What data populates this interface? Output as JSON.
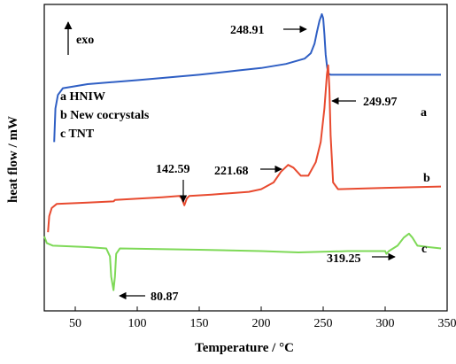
{
  "chart_data": {
    "type": "line",
    "xlabel": "Temperature / °C",
    "ylabel": "heat flow / mW",
    "xlim": [
      25,
      350
    ],
    "xticks": [
      50,
      100,
      150,
      200,
      250,
      300,
      350
    ],
    "grid": false,
    "legend_position": "left",
    "exo_label": "exo",
    "legend": [
      "a HNIW",
      "b New cocrystals",
      "c TNT"
    ],
    "series": [
      {
        "name": "a",
        "color": "#2f5fc4",
        "points": [
          [
            33,
            0.05
          ],
          [
            34,
            0.3
          ],
          [
            36,
            0.4
          ],
          [
            40,
            0.45
          ],
          [
            60,
            0.48
          ],
          [
            100,
            0.51
          ],
          [
            150,
            0.55
          ],
          [
            160,
            0.56
          ],
          [
            180,
            0.58
          ],
          [
            200,
            0.6
          ],
          [
            220,
            0.63
          ],
          [
            235,
            0.67
          ],
          [
            240,
            0.71
          ],
          [
            243,
            0.78
          ],
          [
            245,
            0.87
          ],
          [
            247,
            0.95
          ],
          [
            248.91,
            1.0
          ],
          [
            250,
            0.97
          ],
          [
            251,
            0.85
          ],
          [
            252,
            0.7
          ],
          [
            253,
            0.62
          ],
          [
            254,
            0.56
          ],
          [
            256,
            0.55
          ],
          [
            300,
            0.55
          ],
          [
            345,
            0.55
          ]
        ]
      },
      {
        "name": "b",
        "color": "#e84a2f",
        "points": [
          [
            28,
            -0.62
          ],
          [
            29,
            -0.5
          ],
          [
            31,
            -0.44
          ],
          [
            35,
            -0.41
          ],
          [
            60,
            -0.4
          ],
          [
            81,
            -0.39
          ],
          [
            82,
            -0.38
          ],
          [
            120,
            -0.36
          ],
          [
            134,
            -0.35
          ],
          [
            136,
            -0.37
          ],
          [
            138,
            -0.42
          ],
          [
            140,
            -0.37
          ],
          [
            142,
            -0.35
          ],
          [
            160,
            -0.34
          ],
          [
            190,
            -0.32
          ],
          [
            200,
            -0.3
          ],
          [
            210,
            -0.25
          ],
          [
            216,
            -0.17
          ],
          [
            221.68,
            -0.12
          ],
          [
            226,
            -0.14
          ],
          [
            232,
            -0.2
          ],
          [
            238,
            -0.2
          ],
          [
            244,
            -0.1
          ],
          [
            248,
            0.05
          ],
          [
            251,
            0.3
          ],
          [
            253,
            0.55
          ],
          [
            254,
            0.62
          ],
          [
            255,
            0.45
          ],
          [
            256,
            0.1
          ],
          [
            258,
            -0.25
          ],
          [
            262,
            -0.3
          ],
          [
            300,
            -0.29
          ],
          [
            345,
            -0.28
          ]
        ]
      },
      {
        "name": "c",
        "color": "#7ed957",
        "points": [
          [
            25,
            -0.65
          ],
          [
            27,
            -0.7
          ],
          [
            32,
            -0.72
          ],
          [
            60,
            -0.73
          ],
          [
            75,
            -0.74
          ],
          [
            78,
            -0.8
          ],
          [
            79,
            -0.95
          ],
          [
            80.87,
            -1.05
          ],
          [
            82,
            -0.95
          ],
          [
            83,
            -0.78
          ],
          [
            86,
            -0.74
          ],
          [
            150,
            -0.75
          ],
          [
            200,
            -0.76
          ],
          [
            230,
            -0.77
          ],
          [
            270,
            -0.76
          ],
          [
            300,
            -0.76
          ],
          [
            301,
            -0.78
          ],
          [
            303,
            -0.76
          ],
          [
            310,
            -0.72
          ],
          [
            315,
            -0.66
          ],
          [
            319.25,
            -0.63
          ],
          [
            322,
            -0.66
          ],
          [
            326,
            -0.72
          ],
          [
            335,
            -0.73
          ],
          [
            345,
            -0.74
          ]
        ]
      }
    ],
    "annotations": [
      {
        "text": "248.91",
        "arrow": "right"
      },
      {
        "text": "249.97",
        "arrow": "left"
      },
      {
        "text": "142.59",
        "arrow": "down"
      },
      {
        "text": "221.68",
        "arrow": "right"
      },
      {
        "text": "319.25",
        "arrow": "right"
      },
      {
        "text": "80.87",
        "arrow": "left"
      }
    ]
  }
}
